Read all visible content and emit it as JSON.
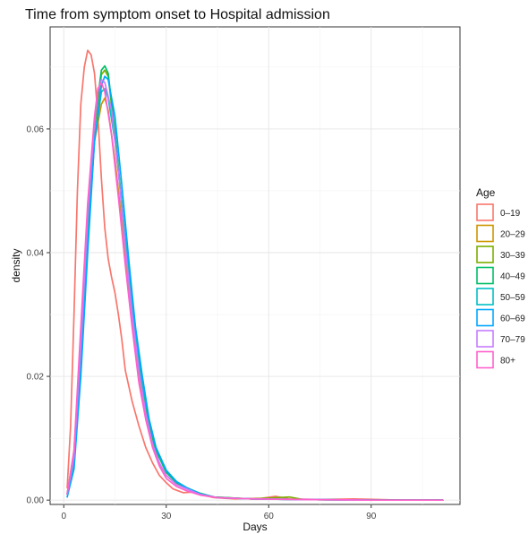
{
  "chart_data": {
    "type": "line",
    "title": "Time from symptom onset to Hospital admission",
    "xlabel": "Days",
    "ylabel": "density",
    "xlim": [
      -4,
      116
    ],
    "ylim": [
      -0.0007,
      0.0765
    ],
    "x_ticks": [
      0,
      30,
      60,
      90
    ],
    "x_tick_labels": [
      "0",
      "30",
      "60",
      "90"
    ],
    "y_ticks": [
      0.0,
      0.02,
      0.04,
      0.06
    ],
    "y_tick_labels": [
      "0.00",
      "0.02",
      "0.04",
      "0.06"
    ],
    "grid": true,
    "legend": {
      "title": "Age",
      "position": "right"
    },
    "series": [
      {
        "name": "0–19",
        "color": "#F8766D",
        "points": [
          [
            1,
            0.002
          ],
          [
            2,
            0.012
          ],
          [
            3,
            0.03
          ],
          [
            4,
            0.05
          ],
          [
            5,
            0.064
          ],
          [
            6,
            0.07
          ],
          [
            7,
            0.0727
          ],
          [
            8,
            0.072
          ],
          [
            9,
            0.069
          ],
          [
            10,
            0.062
          ],
          [
            11,
            0.052
          ],
          [
            12,
            0.044
          ],
          [
            13,
            0.039
          ],
          [
            14,
            0.036
          ],
          [
            15,
            0.0335
          ],
          [
            16,
            0.03
          ],
          [
            17,
            0.026
          ],
          [
            18,
            0.021
          ],
          [
            20,
            0.016
          ],
          [
            22,
            0.012
          ],
          [
            24,
            0.0085
          ],
          [
            26,
            0.006
          ],
          [
            28,
            0.004
          ],
          [
            30,
            0.0028
          ],
          [
            32,
            0.0018
          ],
          [
            35,
            0.0012
          ],
          [
            38,
            0.0013
          ],
          [
            40,
            0.0009
          ],
          [
            44,
            0.0004
          ],
          [
            50,
            0.0002
          ],
          [
            58,
            0.0003
          ],
          [
            62,
            0.0006
          ],
          [
            66,
            0.0002
          ],
          [
            75,
            0.0001
          ],
          [
            85,
            0.0002
          ],
          [
            100,
            0.0
          ],
          [
            111,
            0.0
          ]
        ]
      },
      {
        "name": "20–29",
        "color": "#CD9600",
        "points": [
          [
            1,
            0.001
          ],
          [
            3,
            0.008
          ],
          [
            5,
            0.026
          ],
          [
            7,
            0.045
          ],
          [
            9,
            0.058
          ],
          [
            11,
            0.064
          ],
          [
            12,
            0.065
          ],
          [
            13,
            0.063
          ],
          [
            15,
            0.055
          ],
          [
            17,
            0.045
          ],
          [
            19,
            0.034
          ],
          [
            21,
            0.024
          ],
          [
            23,
            0.017
          ],
          [
            25,
            0.011
          ],
          [
            27,
            0.007
          ],
          [
            30,
            0.004
          ],
          [
            33,
            0.0025
          ],
          [
            36,
            0.0018
          ],
          [
            40,
            0.0009
          ],
          [
            45,
            0.0004
          ],
          [
            55,
            0.0002
          ],
          [
            70,
            0.0001
          ],
          [
            90,
            0.0
          ],
          [
            111,
            0.0
          ]
        ]
      },
      {
        "name": "30–39",
        "color": "#7CAE00",
        "points": [
          [
            1,
            0.001
          ],
          [
            3,
            0.007
          ],
          [
            5,
            0.024
          ],
          [
            7,
            0.044
          ],
          [
            9,
            0.06
          ],
          [
            11,
            0.0688
          ],
          [
            12,
            0.0695
          ],
          [
            13,
            0.0685
          ],
          [
            15,
            0.059
          ],
          [
            17,
            0.048
          ],
          [
            19,
            0.036
          ],
          [
            21,
            0.026
          ],
          [
            23,
            0.018
          ],
          [
            25,
            0.012
          ],
          [
            27,
            0.008
          ],
          [
            30,
            0.0045
          ],
          [
            33,
            0.0028
          ],
          [
            36,
            0.002
          ],
          [
            40,
            0.001
          ],
          [
            44,
            0.0005
          ],
          [
            55,
            0.0002
          ],
          [
            66,
            0.0005
          ],
          [
            70,
            0.0001
          ],
          [
            90,
            0.0
          ],
          [
            111,
            0.0
          ]
        ]
      },
      {
        "name": "40–49",
        "color": "#00BE67",
        "points": [
          [
            1,
            0.001
          ],
          [
            3,
            0.007
          ],
          [
            5,
            0.024
          ],
          [
            7,
            0.044
          ],
          [
            9,
            0.061
          ],
          [
            11,
            0.0695
          ],
          [
            12,
            0.0702
          ],
          [
            13,
            0.069
          ],
          [
            15,
            0.0595
          ],
          [
            17,
            0.048
          ],
          [
            19,
            0.036
          ],
          [
            21,
            0.026
          ],
          [
            23,
            0.018
          ],
          [
            25,
            0.012
          ],
          [
            27,
            0.008
          ],
          [
            30,
            0.0045
          ],
          [
            33,
            0.0028
          ],
          [
            36,
            0.002
          ],
          [
            40,
            0.0011
          ],
          [
            44,
            0.0005
          ],
          [
            55,
            0.0002
          ],
          [
            70,
            0.0001
          ],
          [
            90,
            0.0
          ],
          [
            111,
            0.0
          ]
        ]
      },
      {
        "name": "50–59",
        "color": "#00BFC4",
        "points": [
          [
            1,
            0.001
          ],
          [
            3,
            0.006
          ],
          [
            5,
            0.022
          ],
          [
            7,
            0.042
          ],
          [
            9,
            0.058
          ],
          [
            11,
            0.066
          ],
          [
            12,
            0.0665
          ],
          [
            13,
            0.065
          ],
          [
            15,
            0.058
          ],
          [
            17,
            0.048
          ],
          [
            19,
            0.037
          ],
          [
            21,
            0.027
          ],
          [
            23,
            0.019
          ],
          [
            25,
            0.013
          ],
          [
            27,
            0.0085
          ],
          [
            30,
            0.0048
          ],
          [
            33,
            0.003
          ],
          [
            36,
            0.002
          ],
          [
            40,
            0.001
          ],
          [
            45,
            0.0004
          ],
          [
            55,
            0.0002
          ],
          [
            70,
            0.0001
          ],
          [
            90,
            0.0
          ],
          [
            111,
            0.0
          ]
        ]
      },
      {
        "name": "60–69",
        "color": "#00A9FF",
        "points": [
          [
            1,
            0.0005
          ],
          [
            3,
            0.005
          ],
          [
            5,
            0.02
          ],
          [
            7,
            0.04
          ],
          [
            9,
            0.058
          ],
          [
            11,
            0.067
          ],
          [
            12,
            0.0685
          ],
          [
            13,
            0.068
          ],
          [
            15,
            0.062
          ],
          [
            17,
            0.051
          ],
          [
            19,
            0.039
          ],
          [
            21,
            0.028
          ],
          [
            23,
            0.02
          ],
          [
            25,
            0.013
          ],
          [
            27,
            0.0085
          ],
          [
            30,
            0.0048
          ],
          [
            33,
            0.003
          ],
          [
            36,
            0.002
          ],
          [
            40,
            0.001
          ],
          [
            45,
            0.0004
          ],
          [
            55,
            0.0002
          ],
          [
            70,
            0.0001
          ],
          [
            90,
            0.0
          ],
          [
            111,
            0.0
          ]
        ]
      },
      {
        "name": "70–79",
        "color": "#C77CFF",
        "points": [
          [
            1,
            0.001
          ],
          [
            3,
            0.007
          ],
          [
            5,
            0.025
          ],
          [
            7,
            0.046
          ],
          [
            9,
            0.061
          ],
          [
            10,
            0.066
          ],
          [
            11,
            0.068
          ],
          [
            12,
            0.0675
          ],
          [
            14,
            0.063
          ],
          [
            16,
            0.053
          ],
          [
            18,
            0.041
          ],
          [
            20,
            0.03
          ],
          [
            22,
            0.021
          ],
          [
            24,
            0.014
          ],
          [
            26,
            0.009
          ],
          [
            28,
            0.006
          ],
          [
            30,
            0.004
          ],
          [
            33,
            0.0025
          ],
          [
            36,
            0.0018
          ],
          [
            40,
            0.0009
          ],
          [
            45,
            0.0004
          ],
          [
            55,
            0.0002
          ],
          [
            70,
            0.0001
          ],
          [
            90,
            0.0
          ],
          [
            111,
            0.0
          ]
        ]
      },
      {
        "name": "80+",
        "color": "#FF61CC",
        "points": [
          [
            1,
            0.001
          ],
          [
            3,
            0.008
          ],
          [
            5,
            0.028
          ],
          [
            7,
            0.048
          ],
          [
            9,
            0.062
          ],
          [
            10,
            0.0665
          ],
          [
            11,
            0.0675
          ],
          [
            12,
            0.066
          ],
          [
            14,
            0.059
          ],
          [
            16,
            0.049
          ],
          [
            18,
            0.038
          ],
          [
            20,
            0.028
          ],
          [
            22,
            0.019
          ],
          [
            24,
            0.013
          ],
          [
            26,
            0.0085
          ],
          [
            28,
            0.0055
          ],
          [
            30,
            0.0035
          ],
          [
            33,
            0.0022
          ],
          [
            36,
            0.0015
          ],
          [
            40,
            0.0008
          ],
          [
            45,
            0.0004
          ],
          [
            55,
            0.0002
          ],
          [
            70,
            0.0001
          ],
          [
            90,
            0.0
          ],
          [
            111,
            0.0
          ]
        ]
      }
    ]
  }
}
